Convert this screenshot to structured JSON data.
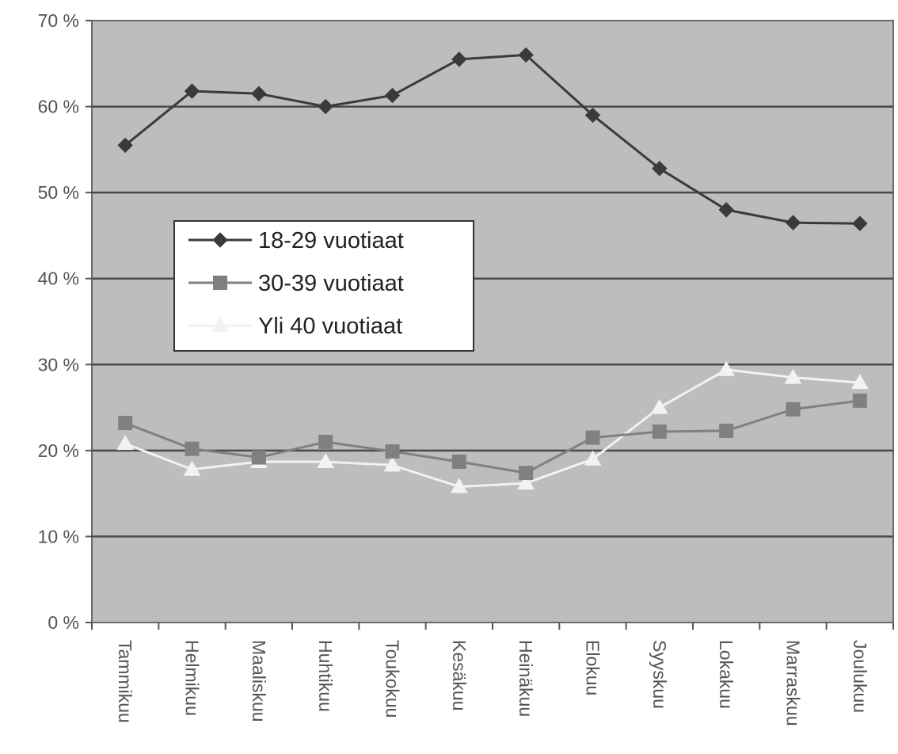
{
  "chart_data": {
    "type": "line",
    "title": "",
    "xlabel": "",
    "ylabel": "",
    "categories": [
      "Tammikuu",
      "Helmikuu",
      "Maaliskuu",
      "Huhtikuu",
      "Toukokuu",
      "Kesäkuu",
      "Heinäkuu",
      "Elokuu",
      "Syyskuu",
      "Lokakuu",
      "Marraskuu",
      "Joulukuu"
    ],
    "yticks": [
      "0 %",
      "10 %",
      "20 %",
      "30 %",
      "40 %",
      "50 %",
      "60 %",
      "70 %"
    ],
    "ylim": [
      0,
      70
    ],
    "grid": true,
    "legend_position": "left-middle",
    "colors": {
      "plot_background": "#bdbdbd",
      "gridline": "#4a4a4a",
      "series_1": "#3a3a3a",
      "series_2": "#808080",
      "series_3": "#f2f2f2",
      "legend_background": "#ffffff"
    },
    "series": [
      {
        "name": "18-29 vuotiaat",
        "marker": "diamond",
        "values": [
          55.5,
          61.8,
          61.5,
          60.0,
          61.3,
          65.5,
          66.0,
          59.0,
          52.8,
          48.0,
          46.5,
          46.4
        ]
      },
      {
        "name": "30-39 vuotiaat",
        "marker": "square",
        "values": [
          23.2,
          20.2,
          19.2,
          21.0,
          19.9,
          18.7,
          17.4,
          21.5,
          22.2,
          22.3,
          24.8,
          25.8
        ]
      },
      {
        "name": "Yli 40 vuotiaat",
        "marker": "triangle",
        "values": [
          20.8,
          17.8,
          18.7,
          18.7,
          18.3,
          15.8,
          16.2,
          19.0,
          25.0,
          29.4,
          28.5,
          27.9
        ]
      }
    ]
  }
}
